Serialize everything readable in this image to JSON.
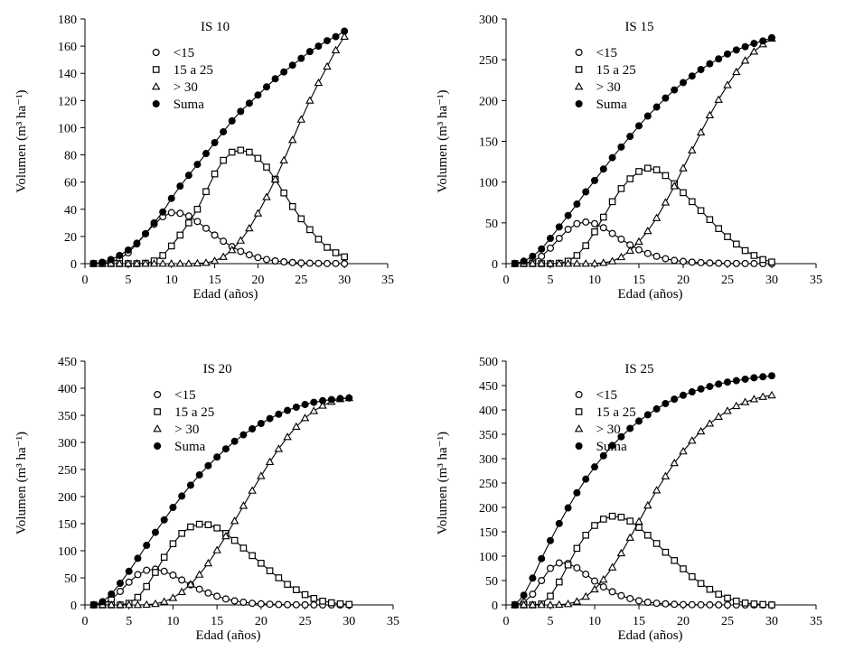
{
  "figure": {
    "background": "#ffffff",
    "line_color": "#000000",
    "marker_styles": {
      "lt15": "open-circle",
      "r15to25": "open-square",
      "gt30": "open-triangle",
      "suma": "filled-circle"
    }
  },
  "chart_data": [
    {
      "type": "line",
      "title": "IS 10",
      "xlabel": "Edad (años)",
      "ylabel": "Volumen (m³ ha⁻¹)",
      "xlim": [
        0,
        35
      ],
      "ylim": [
        0,
        180
      ],
      "xticks": [
        0,
        5,
        10,
        15,
        20,
        25,
        30,
        35
      ],
      "yticks": [
        0,
        20,
        40,
        60,
        80,
        100,
        120,
        140,
        160,
        180
      ],
      "grid": false,
      "legend_position": "top-left",
      "x": [
        1,
        2,
        3,
        4,
        5,
        6,
        7,
        8,
        9,
        10,
        11,
        12,
        13,
        14,
        15,
        16,
        17,
        18,
        19,
        20,
        21,
        22,
        23,
        24,
        25,
        26,
        27,
        28,
        29,
        30
      ],
      "series": [
        {
          "key": "lt15",
          "name": "<15",
          "marker": "open-circle",
          "values": [
            0,
            0.3,
            1.2,
            3.5,
            8,
            14.5,
            22,
            29,
            34.5,
            37.5,
            37,
            35,
            31,
            26,
            21,
            16.5,
            12.5,
            9,
            6.5,
            4.5,
            3,
            2,
            1.3,
            0.8,
            0.5,
            0.3,
            0.2,
            0.1,
            0.1,
            0
          ]
        },
        {
          "key": "r15to25",
          "name": "15 a 25",
          "marker": "open-square",
          "values": [
            0,
            0,
            0,
            0,
            0,
            0,
            0.3,
            2,
            6,
            13,
            21,
            30,
            40,
            53,
            66,
            76,
            82,
            83.5,
            82,
            77.5,
            71,
            62,
            52,
            42,
            33,
            25,
            18,
            12,
            8,
            5
          ]
        },
        {
          "key": "gt30",
          "name": "> 30",
          "marker": "open-triangle",
          "values": [
            0,
            0,
            0,
            0,
            0,
            0,
            0,
            0,
            0,
            0,
            0,
            0,
            0.2,
            0.6,
            2,
            5,
            10,
            17,
            26,
            37,
            49,
            62,
            76,
            91,
            106,
            120,
            133,
            145,
            157,
            167
          ]
        },
        {
          "key": "suma",
          "name": "Suma",
          "marker": "filled-circle",
          "values": [
            0,
            1,
            3,
            6,
            10,
            15,
            22,
            30,
            38,
            48,
            57,
            65,
            73,
            81,
            89,
            97,
            105,
            112,
            118,
            124,
            130,
            136,
            141,
            146,
            151,
            156,
            160,
            164,
            167,
            171
          ]
        }
      ]
    },
    {
      "type": "line",
      "title": "IS 15",
      "xlabel": "Edad (años)",
      "ylabel": "Volumen (m³ ha⁻¹)",
      "xlim": [
        0,
        35
      ],
      "ylim": [
        0,
        300
      ],
      "xticks": [
        0,
        5,
        10,
        15,
        20,
        25,
        30,
        35
      ],
      "yticks": [
        0,
        50,
        100,
        150,
        200,
        250,
        300
      ],
      "grid": false,
      "legend_position": "top-left",
      "x": [
        1,
        2,
        3,
        4,
        5,
        6,
        7,
        8,
        9,
        10,
        11,
        12,
        13,
        14,
        15,
        16,
        17,
        18,
        19,
        20,
        21,
        22,
        23,
        24,
        25,
        26,
        27,
        28,
        29,
        30
      ],
      "series": [
        {
          "key": "lt15",
          "name": "<15",
          "marker": "open-circle",
          "values": [
            0,
            0.5,
            3,
            9,
            19,
            31,
            42,
            49,
            51,
            49,
            44,
            37,
            30,
            23,
            17,
            12.5,
            9,
            6,
            4,
            2.7,
            1.8,
            1.2,
            0.8,
            0.5,
            0.3,
            0.2,
            0.1,
            0.1,
            0,
            0
          ]
        },
        {
          "key": "r15to25",
          "name": "15 a 25",
          "marker": "open-square",
          "values": [
            0,
            0,
            0,
            0,
            0,
            0.5,
            3,
            10,
            22,
            39,
            57,
            76,
            92,
            104,
            113,
            117,
            115,
            108,
            98,
            87,
            76,
            65,
            54,
            43,
            33,
            24,
            16,
            10,
            5,
            2
          ]
        },
        {
          "key": "gt30",
          "name": "> 30",
          "marker": "open-triangle",
          "values": [
            0,
            0,
            0,
            0,
            0,
            0,
            0,
            0,
            0,
            0.2,
            1,
            3,
            8,
            16,
            27,
            40,
            56,
            75,
            95,
            117,
            139,
            161,
            182,
            201,
            219,
            235,
            249,
            260,
            269,
            276
          ]
        },
        {
          "key": "suma",
          "name": "Suma",
          "marker": "filled-circle",
          "values": [
            0,
            3,
            9,
            18,
            31,
            45,
            59,
            73,
            88,
            102,
            116,
            130,
            143,
            156,
            169,
            181,
            192,
            203,
            213,
            222,
            230,
            238,
            245,
            251,
            257,
            262,
            266,
            270,
            273,
            277
          ]
        }
      ]
    },
    {
      "type": "line",
      "title": "IS 20",
      "xlabel": "Edad (años)",
      "ylabel": "Volumen (m³ ha⁻¹)",
      "xlim": [
        0,
        35
      ],
      "ylim": [
        0,
        450
      ],
      "xticks": [
        0,
        5,
        10,
        15,
        20,
        25,
        30,
        35
      ],
      "yticks": [
        0,
        50,
        100,
        150,
        200,
        250,
        300,
        350,
        400,
        450
      ],
      "grid": false,
      "legend_position": "top-left",
      "x": [
        1,
        2,
        3,
        4,
        5,
        6,
        7,
        8,
        9,
        10,
        11,
        12,
        13,
        14,
        15,
        16,
        17,
        18,
        19,
        20,
        21,
        22,
        23,
        24,
        25,
        26,
        27,
        28,
        29,
        30
      ],
      "series": [
        {
          "key": "lt15",
          "name": "<15",
          "marker": "open-circle",
          "values": [
            0,
            2,
            10,
            25,
            42,
            56,
            64,
            66,
            62,
            55,
            46,
            37,
            29,
            22,
            16,
            11,
            7.5,
            5,
            3,
            2,
            1.3,
            0.8,
            0.5,
            0.3,
            0.2,
            0.1,
            0,
            0,
            0,
            0
          ]
        },
        {
          "key": "r15to25",
          "name": "15 a 25",
          "marker": "open-square",
          "values": [
            0,
            0,
            0,
            0,
            3,
            14,
            34,
            60,
            88,
            113,
            132,
            144,
            149,
            148,
            142,
            132,
            119,
            105,
            91,
            77,
            63,
            50,
            38,
            28,
            19,
            12,
            7,
            4,
            2,
            1
          ]
        },
        {
          "key": "gt30",
          "name": "> 30",
          "marker": "open-triangle",
          "values": [
            0,
            0,
            0,
            0,
            0,
            0,
            0.5,
            2,
            6,
            13,
            24,
            38,
            56,
            77,
            101,
            127,
            155,
            183,
            211,
            238,
            264,
            288,
            310,
            329,
            345,
            358,
            368,
            375,
            380,
            382
          ]
        },
        {
          "key": "suma",
          "name": "Suma",
          "marker": "filled-circle",
          "values": [
            0,
            6,
            20,
            40,
            62,
            86,
            110,
            134,
            157,
            180,
            201,
            221,
            240,
            257,
            273,
            288,
            302,
            314,
            325,
            335,
            344,
            352,
            359,
            365,
            370,
            374,
            377,
            379,
            381,
            382
          ]
        }
      ]
    },
    {
      "type": "line",
      "title": "IS 25",
      "xlabel": "Edad (años)",
      "ylabel": "Volumen (m³ ha⁻¹)",
      "xlim": [
        0,
        35
      ],
      "ylim": [
        0,
        500
      ],
      "xticks": [
        0,
        5,
        10,
        15,
        20,
        25,
        30,
        35
      ],
      "yticks": [
        0,
        50,
        100,
        150,
        200,
        250,
        300,
        350,
        400,
        450,
        500
      ],
      "grid": false,
      "legend_position": "top-left",
      "x": [
        1,
        2,
        3,
        4,
        5,
        6,
        7,
        8,
        9,
        10,
        11,
        12,
        13,
        14,
        15,
        16,
        17,
        18,
        19,
        20,
        21,
        22,
        23,
        24,
        25,
        26,
        27,
        28,
        29,
        30
      ],
      "series": [
        {
          "key": "lt15",
          "name": "<15",
          "marker": "open-circle",
          "values": [
            0,
            5,
            22,
            50,
            75,
            86,
            85,
            76,
            63,
            49,
            37,
            27,
            19,
            13,
            8.5,
            5.5,
            3.5,
            2.2,
            1.3,
            0.8,
            0.5,
            0.3,
            0.2,
            0.1,
            0,
            0,
            0,
            0,
            0,
            0
          ]
        },
        {
          "key": "r15to25",
          "name": "15 a 25",
          "marker": "open-square",
          "values": [
            0,
            0,
            0,
            2,
            18,
            47,
            82,
            116,
            143,
            163,
            176,
            182,
            180,
            172,
            159,
            143,
            126,
            108,
            91,
            74,
            58,
            44,
            32,
            22,
            14,
            8,
            4,
            2,
            1,
            0
          ]
        },
        {
          "key": "gt30",
          "name": "> 30",
          "marker": "open-triangle",
          "values": [
            0,
            0,
            0,
            0,
            0,
            0.5,
            2,
            7,
            17,
            32,
            52,
            77,
            106,
            138,
            171,
            204,
            235,
            264,
            291,
            315,
            337,
            356,
            372,
            386,
            398,
            408,
            416,
            422,
            427,
            430
          ]
        },
        {
          "key": "suma",
          "name": "Suma",
          "marker": "filled-circle",
          "values": [
            0,
            20,
            55,
            95,
            132,
            167,
            199,
            230,
            258,
            283,
            306,
            327,
            345,
            362,
            377,
            390,
            402,
            413,
            422,
            430,
            437,
            443,
            448,
            453,
            457,
            460,
            463,
            466,
            468,
            470
          ]
        }
      ]
    }
  ]
}
